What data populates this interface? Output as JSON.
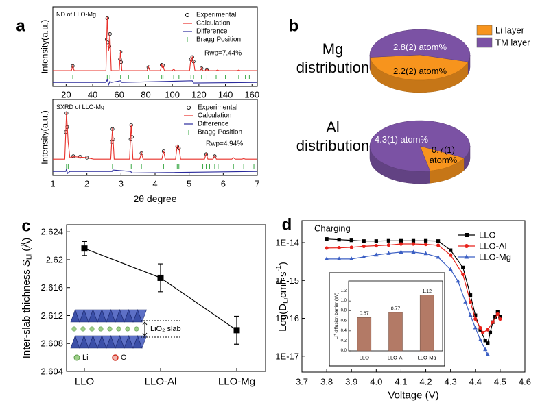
{
  "chart_data": [
    {
      "type": "line",
      "label": "a",
      "title": "ND of LLO-Mg",
      "ylabel": "Intensity(a.u.)",
      "annotation": "Rwp=7.44%",
      "xlim": [
        10,
        164
      ],
      "xticks": [
        20,
        40,
        60,
        80,
        100,
        120,
        140,
        160
      ],
      "ylim": [
        -23,
        118
      ],
      "series": [
        {
          "name": "Experimental",
          "marker": "circle",
          "color": "#000000",
          "x": [
            25,
            50.6,
            51,
            51.4,
            52.6,
            53,
            60.6,
            61,
            61.4,
            82,
            92,
            93,
            114,
            115,
            116,
            122,
            126
          ],
          "values": [
            13,
            60,
            98,
            55,
            48,
            70,
            25,
            38,
            20,
            11,
            15,
            14,
            25,
            29,
            21,
            9,
            7
          ]
        },
        {
          "name": "Calculation",
          "marker": "line",
          "color": "#e8302a",
          "x": [
            10,
            24,
            25,
            26,
            50,
            51,
            52,
            52.6,
            53,
            54,
            60,
            61,
            62,
            81,
            82,
            83,
            91,
            92,
            92.6,
            93,
            94,
            100,
            101,
            102,
            113,
            114,
            114.6,
            115,
            116,
            117,
            121,
            122,
            123,
            125,
            126,
            127,
            133,
            134,
            135,
            149,
            150,
            151,
            164
          ],
          "values": [
            5,
            5,
            14,
            5,
            5,
            100,
            40,
            50,
            72,
            5,
            5,
            40,
            5,
            5,
            12,
            5,
            5,
            16,
            10,
            15,
            5,
            5,
            8,
            5,
            5,
            26,
            20,
            30,
            22,
            5,
            5,
            10,
            5,
            5,
            8,
            5,
            5,
            6,
            5,
            5,
            6,
            5,
            5
          ]
        },
        {
          "name": "Difference",
          "marker": "line",
          "color": "#2b2b9c",
          "x": [
            10,
            50,
            51,
            52,
            53,
            54,
            61,
            62,
            115,
            116,
            164
          ],
          "values": [
            -16,
            -16,
            -11,
            -20,
            -14,
            -16,
            -13,
            -16,
            -13,
            -17,
            -16
          ]
        },
        {
          "name": "Bragg Position",
          "marker": "tick",
          "color": "#3aa845",
          "x": [
            25,
            51,
            53,
            61,
            67,
            82,
            92,
            93,
            101,
            105,
            114,
            116,
            122,
            126,
            133,
            140,
            150,
            155,
            158
          ]
        }
      ]
    },
    {
      "type": "line",
      "title": "SXRD of LLO-Mg",
      "ylabel": "Intensity(a.u.)",
      "xlabel": "2θ degree",
      "annotation": "Rwp=4.94%",
      "xlim": [
        1,
        7
      ],
      "xticks": [
        1,
        2,
        3,
        4,
        5,
        6,
        7
      ],
      "ylim": [
        -28,
        126
      ],
      "series": [
        {
          "name": "Experimental",
          "marker": "circle",
          "color": "#000000",
          "x": [
            1.38,
            1.4,
            1.42,
            1.6,
            1.8,
            2.0,
            2.73,
            2.75,
            2.77,
            3.28,
            3.3,
            3.32,
            3.6,
            4.25,
            4.65,
            4.7,
            5.5,
            5.75
          ],
          "values": [
            60,
            98,
            70,
            11,
            10,
            8,
            40,
            66,
            45,
            45,
            74,
            50,
            17,
            21,
            31,
            27,
            15,
            11
          ]
        },
        {
          "name": "Calculation",
          "marker": "line",
          "color": "#e8302a",
          "x": [
            1,
            1.35,
            1.4,
            1.45,
            1.5,
            1.6,
            2.0,
            2.2,
            2.7,
            2.75,
            2.8,
            3.25,
            3.3,
            3.35,
            3.55,
            3.6,
            3.65,
            4.2,
            4.25,
            4.3,
            4.6,
            4.65,
            4.7,
            4.75,
            5.45,
            5.5,
            5.55,
            5.7,
            5.75,
            5.8,
            6.25,
            6.3,
            6.35,
            6.55,
            6.6,
            6.65,
            7
          ],
          "values": [
            5,
            5,
            100,
            40,
            8,
            10,
            8,
            5,
            5,
            68,
            5,
            5,
            75,
            5,
            5,
            18,
            5,
            5,
            22,
            5,
            5,
            32,
            28,
            5,
            5,
            16,
            5,
            5,
            12,
            5,
            5,
            8,
            5,
            5,
            6,
            5,
            5
          ]
        },
        {
          "name": "Difference",
          "marker": "line",
          "color": "#2b2b9c",
          "x": [
            1,
            1.38,
            1.4,
            1.43,
            1.5,
            2.74,
            2.76,
            3.29,
            3.31,
            7
          ],
          "values": [
            -20,
            -20,
            -15,
            -24,
            -20,
            -20,
            -17,
            -20,
            -23,
            -20
          ]
        },
        {
          "name": "Bragg Position",
          "marker": "tick",
          "color": "#3aa845",
          "x": [
            1.4,
            1.45,
            2.75,
            3.3,
            3.6,
            4.25,
            4.65,
            4.7,
            5.4,
            5.5,
            5.6,
            5.75,
            5.85,
            6.3,
            6.6,
            6.9
          ]
        }
      ]
    },
    {
      "type": "pie",
      "label": "b",
      "categories": [
        "Li layer",
        "TM layer"
      ],
      "colors": [
        "#f7941d",
        "#7b52a4"
      ],
      "pies": [
        {
          "title": "Mg distribution",
          "values": [
            2.2,
            2.8
          ],
          "value_labels": [
            "2.2(2) atom%",
            "2.8(2) atom%"
          ]
        },
        {
          "title": "Al distribution",
          "values": [
            0.7,
            4.3
          ],
          "value_labels": [
            "0.7(1) atom%",
            "4.3(1) atom%"
          ]
        }
      ]
    },
    {
      "type": "line",
      "label": "c",
      "marker": "square",
      "color": "#000000",
      "ylabel": [
        {
          "text": "Inter-slab thichness "
        },
        {
          "text": "S"
        },
        {
          "text": "Li",
          "shift": "sub"
        },
        {
          "text": " (Å)"
        }
      ],
      "categories": [
        "LLO",
        "LLO-Al",
        "LLO-Mg"
      ],
      "values": [
        2.6216,
        2.6174,
        2.6099
      ],
      "errors": [
        0.001,
        0.002,
        0.002
      ],
      "ylim": [
        2.604,
        2.625
      ],
      "yticks": [
        2.604,
        2.608,
        2.612,
        2.616,
        2.62,
        2.624
      ],
      "inset_labels": {
        "slab": "LiO₂ slab",
        "li": "Li",
        "o": "O"
      }
    },
    {
      "type": "line",
      "label": "d",
      "annotation": "Charging",
      "log_y": true,
      "xlabel": "Voltage (V)",
      "ylabel": [
        {
          "text": "Log(D"
        },
        {
          "text": "Li",
          "shift": "sub"
        },
        {
          "text": "cm"
        },
        {
          "text": "2",
          "shift": "super"
        },
        {
          "text": "·s"
        },
        {
          "text": "-1",
          "shift": "super"
        },
        {
          "text": ")"
        }
      ],
      "xlim": [
        3.7,
        4.6
      ],
      "xticks": [
        3.7,
        3.8,
        3.9,
        {
          "value": 4,
          "label": "4.0"
        },
        4.1,
        4.2,
        4.3,
        4.4,
        4.5,
        4.6
      ],
      "ylim": [
        3.8e-18,
        3.8e-14
      ],
      "yticks": [
        {
          "value": 1e-17,
          "label": "1E-17"
        },
        {
          "value": 1e-16,
          "label": "1E-16"
        },
        {
          "value": 1e-15,
          "label": "1E-15"
        },
        {
          "value": 1e-14,
          "label": "1E-14"
        }
      ],
      "series": [
        {
          "name": "LLO",
          "marker": "square",
          "color": "#000000",
          "x": [
            3.8,
            3.85,
            3.9,
            3.95,
            4.0,
            4.05,
            4.1,
            4.15,
            4.2,
            4.25,
            4.3,
            4.35,
            4.38,
            4.4,
            4.42,
            4.44,
            4.45,
            4.46,
            4.47,
            4.48,
            4.49,
            4.5
          ],
          "values": [
            1.25e-14,
            1.2e-14,
            1.15e-14,
            1.1e-14,
            1.1e-14,
            1.12e-14,
            1.12e-14,
            1.12e-14,
            1.12e-14,
            1.1e-14,
            6.3e-15,
            2.2e-15,
            4.1e-16,
            1.2e-16,
            5e-17,
            2.6e-17,
            2.2e-17,
            4.2e-17,
            7.9e-17,
            1.1e-16,
            1.5e-16,
            1.1e-16
          ]
        },
        {
          "name": "LLO-Al",
          "marker": "circle",
          "color": "#e8221b",
          "x": [
            3.8,
            3.85,
            3.9,
            3.95,
            4.0,
            4.05,
            4.1,
            4.15,
            4.2,
            4.25,
            4.3,
            4.35,
            4.38,
            4.4,
            4.42,
            4.43,
            4.45,
            4.47,
            4.49,
            4.5
          ],
          "values": [
            7.2e-15,
            7.3e-15,
            7.5e-15,
            8e-15,
            8.3e-15,
            8.6e-15,
            9.2e-15,
            9.2e-15,
            9e-15,
            8.5e-15,
            4.7e-15,
            1.45e-15,
            2.7e-16,
            9.6e-17,
            5.6e-17,
            4.2e-17,
            5e-17,
            7.9e-17,
            1.3e-16,
            9.6e-17
          ]
        },
        {
          "name": "LLO-Mg",
          "marker": "triangle",
          "color": "#3b5fc4",
          "x": [
            3.8,
            3.85,
            3.9,
            3.95,
            4.0,
            4.05,
            4.1,
            4.15,
            4.2,
            4.25,
            4.3,
            4.33,
            4.36,
            4.38,
            4.4,
            4.42,
            4.44,
            4.45
          ],
          "values": [
            3.7e-15,
            3.7e-15,
            3.7e-15,
            4.2e-15,
            4.7e-15,
            5.2e-15,
            5.6e-15,
            5.6e-15,
            5.1e-15,
            4.1e-15,
            1.95e-15,
            9.6e-16,
            2.7e-16,
            1.2e-16,
            5.6e-17,
            2.7e-17,
            1.5e-17,
            1.1e-17
          ]
        }
      ]
    },
    {
      "type": "bar",
      "color": "#b37a66",
      "ylabel": [
        {
          "text": "Li"
        },
        {
          "text": "+",
          "shift": "super"
        },
        {
          "text": " diffusion barrier (eV)"
        }
      ],
      "categories": [
        "LLO",
        "LLO-Al",
        "LLO-Mg"
      ],
      "values": [
        0.67,
        0.77,
        1.12
      ],
      "ylim": [
        0,
        1.4
      ],
      "yticks": [
        {
          "value": 0,
          "label": "0.0"
        },
        0.2,
        0.4,
        0.6,
        0.8,
        {
          "value": 1,
          "label": "1.0"
        },
        1.2
      ]
    }
  ]
}
